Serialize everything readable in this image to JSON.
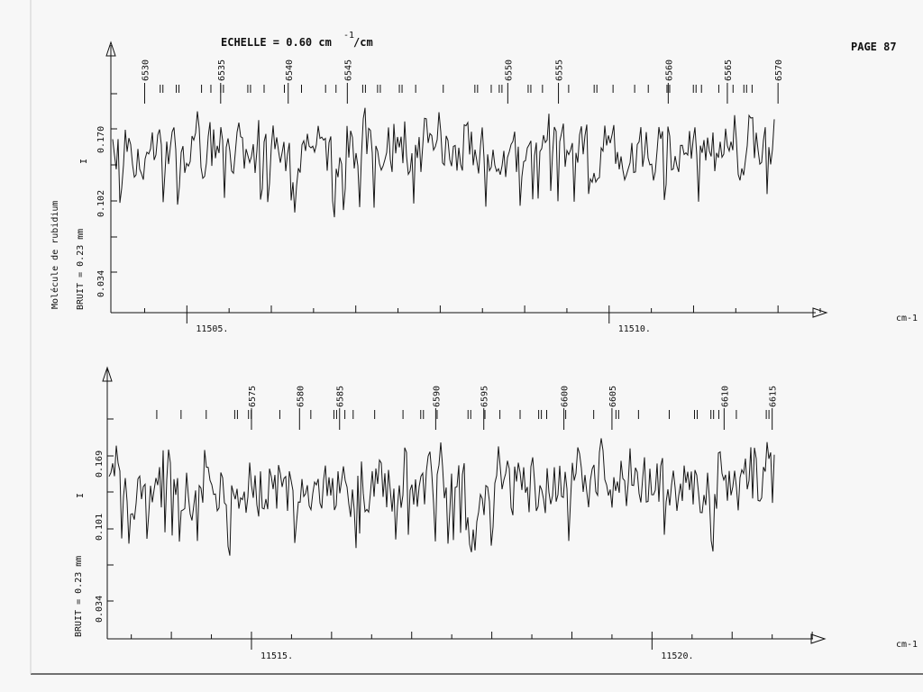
{
  "page": {
    "scale_text": "ECHELLE = 0.60 cm",
    "scale_exp": "-1",
    "scale_unit": "/cm",
    "page_label": "PAGE 87",
    "molecule_label": "Molécule de rubidium"
  },
  "chart_data": [
    {
      "type": "line",
      "xlabel": "cm-1",
      "xlim": [
        11504.1,
        11512.5
      ],
      "x_ticks": [
        "11505.",
        "11510."
      ],
      "x_tick_values": [
        11505,
        11510
      ],
      "ylabel": "I",
      "y_ticks": [
        "0.170",
        "0.102",
        "0.034"
      ],
      "noise_label": "BRUIT = 0.23 mm",
      "line_numbers": [
        "6530",
        "6535",
        "6540",
        "6545",
        "6550",
        "6555",
        "6560",
        "6565",
        "6570"
      ],
      "line_number_positions": [
        11504.5,
        11505.4,
        11506.2,
        11506.9,
        11508.8,
        11509.4,
        11510.7,
        11511.4,
        11512.0
      ],
      "seed": 11
    },
    {
      "type": "line",
      "xlabel": "cm-1",
      "xlim": [
        11513.2,
        11522.1
      ],
      "x_ticks": [
        "11515.",
        "11520."
      ],
      "x_tick_values": [
        11515,
        11520
      ],
      "ylabel": "I",
      "y_ticks": [
        "0.169",
        "0.101",
        "0.034"
      ],
      "noise_label": "BRUIT = 0.23 mm",
      "line_numbers": [
        "6575",
        "6580",
        "6585",
        "6590",
        "6595",
        "6600",
        "6605",
        "6610",
        "6615"
      ],
      "line_number_positions": [
        11515.0,
        11515.6,
        11516.1,
        11517.3,
        11517.9,
        11518.9,
        11519.5,
        11520.9,
        11521.5
      ],
      "seed": 29
    }
  ],
  "colors": {
    "ink": "#111111",
    "paper": "#f7f7f7"
  }
}
